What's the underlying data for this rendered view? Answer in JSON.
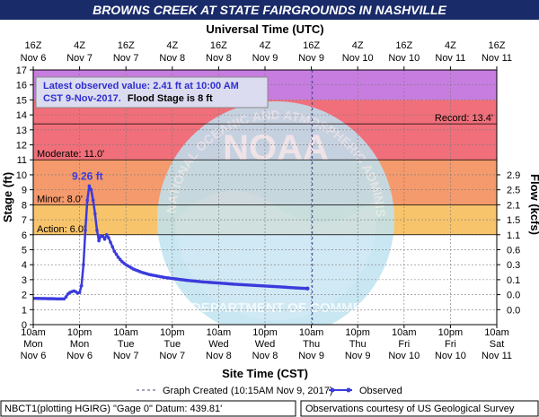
{
  "title": "BROWNS CREEK AT STATE FAIRGROUNDS IN NASHVILLE",
  "colors": {
    "title_bg": "#1a2b6a",
    "record": "#c77de0",
    "major": "#f06f7a",
    "moderate": "#f49a6c",
    "flood": "#f8c46b",
    "action": "#ecec52",
    "observed": "#3b3bdc",
    "graph_created": "#44448a",
    "watermark": "#bfe3f2"
  },
  "watermark": {
    "noaa": "NOAA",
    "arc_text": "NATIONAL OCEANIC AND ATMOSPHERIC ADMINISTRATION",
    "bottom_text": "U.S. DEPARTMENT OF COMMERCE"
  },
  "info_box": {
    "line1": "Latest observed value: 2.41 ft at 10:00 AM",
    "line2_prefix": "CST 9-Nov-2017.",
    "line2_suffix": "Flood Stage is 8 ft"
  },
  "legend": {
    "graph_created": "Graph Created (10:15AM Nov 9, 2017)",
    "observed": "Observed"
  },
  "footer": {
    "left": "NBCT1(plotting HGIRG) \"Gage 0\" Datum: 439.81'",
    "right": "Observations courtesy of US Geological Survey"
  },
  "chart_data": {
    "type": "line",
    "title": "BROWNS CREEK AT STATE FAIRGROUNDS IN NASHVILLE",
    "top_axis_label": "Universal Time (UTC)",
    "xlabel": "Site Time (CST)",
    "ylabel": "Stage (ft)",
    "y2label": "Flow (kcfs)",
    "ylim": [
      0,
      17
    ],
    "y_ticks": [
      0,
      1,
      2,
      3,
      4,
      5,
      6,
      7,
      8,
      9,
      10,
      11,
      12,
      13,
      14,
      15,
      16,
      17
    ],
    "x_range_hours": [
      0,
      120
    ],
    "x_ticks": [
      {
        "h": 0,
        "l1": "10am",
        "l2": "Mon",
        "l3": "Nov 6"
      },
      {
        "h": 12,
        "l1": "10pm",
        "l2": "Mon",
        "l3": "Nov 6"
      },
      {
        "h": 24,
        "l1": "10am",
        "l2": "Tue",
        "l3": "Nov 7"
      },
      {
        "h": 36,
        "l1": "10pm",
        "l2": "Tue",
        "l3": "Nov 7"
      },
      {
        "h": 48,
        "l1": "10am",
        "l2": "Wed",
        "l3": "Nov 8"
      },
      {
        "h": 60,
        "l1": "10pm",
        "l2": "Wed",
        "l3": "Nov 8"
      },
      {
        "h": 72,
        "l1": "10am",
        "l2": "Thu",
        "l3": "Nov 9"
      },
      {
        "h": 84,
        "l1": "10pm",
        "l2": "Thu",
        "l3": "Nov 9"
      },
      {
        "h": 96,
        "l1": "10am",
        "l2": "Fri",
        "l3": "Nov 10"
      },
      {
        "h": 108,
        "l1": "10pm",
        "l2": "Fri",
        "l3": "Nov 10"
      },
      {
        "h": 120,
        "l1": "10am",
        "l2": "Sat",
        "l3": "Nov 11"
      }
    ],
    "top_ticks": [
      {
        "h": 0,
        "l1": "16Z",
        "l2": "Nov 6"
      },
      {
        "h": 12,
        "l1": "4Z",
        "l2": "Nov 7"
      },
      {
        "h": 24,
        "l1": "16Z",
        "l2": "Nov 7"
      },
      {
        "h": 36,
        "l1": "4Z",
        "l2": "Nov 8"
      },
      {
        "h": 48,
        "l1": "16Z",
        "l2": "Nov 8"
      },
      {
        "h": 60,
        "l1": "4Z",
        "l2": "Nov 9"
      },
      {
        "h": 72,
        "l1": "16Z",
        "l2": "Nov 9"
      },
      {
        "h": 84,
        "l1": "4Z",
        "l2": "Nov 10"
      },
      {
        "h": 96,
        "l1": "16Z",
        "l2": "Nov 10"
      },
      {
        "h": 108,
        "l1": "4Z",
        "l2": "Nov 11"
      },
      {
        "h": 120,
        "l1": "16Z",
        "l2": "Nov 11"
      }
    ],
    "flow_ticks": [
      {
        "stage": 10.0,
        "label": "2.9"
      },
      {
        "stage": 9.0,
        "label": "2.5"
      },
      {
        "stage": 8.0,
        "label": "2.1"
      },
      {
        "stage": 7.0,
        "label": "1.5"
      },
      {
        "stage": 6.0,
        "label": "1.1"
      },
      {
        "stage": 5.0,
        "label": "0.6"
      },
      {
        "stage": 4.0,
        "label": "0.3"
      },
      {
        "stage": 3.0,
        "label": "0.1"
      },
      {
        "stage": 2.0,
        "label": "0.0"
      },
      {
        "stage": 1.0,
        "label": "0.0"
      }
    ],
    "bands": [
      {
        "from": 15,
        "to": 17,
        "color": "#c77de0"
      },
      {
        "from": 11,
        "to": 15,
        "color": "#f06f7a"
      },
      {
        "from": 8,
        "to": 11,
        "color": "#f49a6c"
      },
      {
        "from": 6,
        "to": 8,
        "color": "#f8c46b"
      },
      {
        "from": 0,
        "to": 6,
        "color": "#ffffff"
      }
    ],
    "stage_lines": [
      {
        "value": 13.4,
        "label": "Record: 13.4'",
        "side": "right"
      },
      {
        "value": 11.0,
        "label": "Moderate: 11.0'",
        "side": "left"
      },
      {
        "value": 8.0,
        "label": "Minor: 8.0'",
        "side": "left"
      },
      {
        "value": 6.0,
        "label": "Action: 6.0'",
        "side": "left"
      }
    ],
    "peak_label": "9.26 ft",
    "peak": {
      "x": 14.5,
      "y": 9.26
    },
    "graph_created_x": 72.25,
    "series": [
      {
        "name": "Observed",
        "points": [
          [
            0,
            1.75
          ],
          [
            1,
            1.75
          ],
          [
            2,
            1.74
          ],
          [
            3,
            1.74
          ],
          [
            4,
            1.73
          ],
          [
            5,
            1.73
          ],
          [
            6,
            1.72
          ],
          [
            7,
            1.72
          ],
          [
            8,
            1.72
          ],
          [
            8.5,
            1.85
          ],
          [
            9,
            2.05
          ],
          [
            9.5,
            2.15
          ],
          [
            10,
            2.2
          ],
          [
            10.5,
            2.25
          ],
          [
            11,
            2.2
          ],
          [
            11.5,
            2.1
          ],
          [
            12,
            2.15
          ],
          [
            12.5,
            2.6
          ],
          [
            13,
            4.0
          ],
          [
            13.5,
            6.3
          ],
          [
            14,
            8.3
          ],
          [
            14.5,
            9.26
          ],
          [
            15,
            9.0
          ],
          [
            15.5,
            8.3
          ],
          [
            16,
            7.4
          ],
          [
            16.5,
            6.3
          ],
          [
            17,
            5.6
          ],
          [
            17.5,
            5.9
          ],
          [
            18,
            5.9
          ],
          [
            18.5,
            5.7
          ],
          [
            19,
            6.0
          ],
          [
            19.5,
            5.8
          ],
          [
            20,
            5.5
          ],
          [
            21,
            4.9
          ],
          [
            22,
            4.5
          ],
          [
            23,
            4.2
          ],
          [
            24,
            4.0
          ],
          [
            26,
            3.7
          ],
          [
            28,
            3.5
          ],
          [
            30,
            3.35
          ],
          [
            32,
            3.25
          ],
          [
            34,
            3.15
          ],
          [
            36,
            3.08
          ],
          [
            40,
            2.95
          ],
          [
            44,
            2.85
          ],
          [
            48,
            2.78
          ],
          [
            52,
            2.7
          ],
          [
            56,
            2.64
          ],
          [
            60,
            2.58
          ],
          [
            64,
            2.52
          ],
          [
            68,
            2.45
          ],
          [
            71,
            2.41
          ]
        ]
      }
    ],
    "legend_position": "bottom"
  }
}
